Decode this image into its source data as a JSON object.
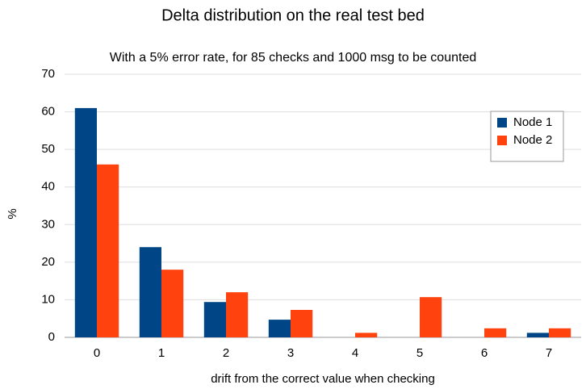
{
  "chart_data": {
    "type": "bar",
    "title": "Delta distribution on the real test bed",
    "subtitle": "With a 5% error rate, for 85 checks and 1000 msg to be counted",
    "x_label": "drift from the correct value when checking",
    "y_label": "%",
    "categories": [
      "0",
      "1",
      "2",
      "3",
      "4",
      "5",
      "6",
      "7"
    ],
    "series": [
      {
        "name": "Node 1",
        "color": "#004586",
        "values": [
          61,
          24,
          9.4,
          4.7,
          0,
          0,
          0,
          1.2
        ]
      },
      {
        "name": "Node 2",
        "color": "#ff420e",
        "values": [
          46,
          18,
          12,
          7.3,
          1.2,
          10.7,
          2.4,
          2.4
        ]
      }
    ],
    "ylim": [
      0,
      70
    ],
    "yticks": [
      0,
      10,
      20,
      30,
      40,
      50,
      60,
      70
    ],
    "grid": true,
    "legend": "upper right"
  }
}
